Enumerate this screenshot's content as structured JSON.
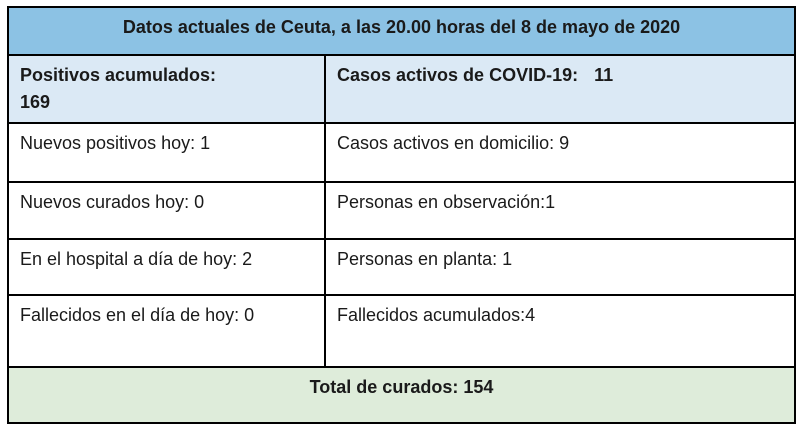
{
  "colors": {
    "title_bg": "#8CC2E4",
    "summary_bg": "#DBE9F5",
    "footer_bg": "#DEECDA",
    "border": "#000000",
    "text": "#1A1A1A"
  },
  "table": {
    "title": "Datos actuales de Ceuta, a las 20.00 horas del 8 de mayo de 2020",
    "summary": {
      "left_label": "Positivos acumulados:",
      "left_value": "169",
      "right_label": "Casos activos de COVID-19:",
      "right_value": "11"
    },
    "rows": [
      {
        "left": "Nuevos positivos hoy: 1",
        "right": "Casos activos en domicilio: 9"
      },
      {
        "left": "Nuevos curados hoy: 0",
        "right": "Personas en observación:1"
      },
      {
        "left": "En el hospital a día de hoy: 2",
        "right": "Personas en planta: 1"
      },
      {
        "left": "Fallecidos en el día de hoy: 0",
        "right": "Fallecidos acumulados:4"
      }
    ],
    "footer": "Total de curados: 154"
  }
}
